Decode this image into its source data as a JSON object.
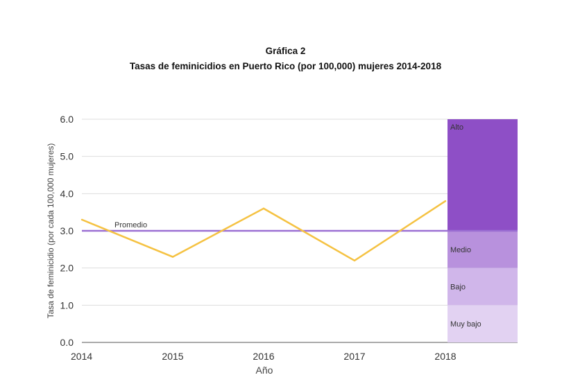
{
  "chart_data": {
    "type": "line",
    "title": "Gráfica 2",
    "subtitle": "Tasas de feminicidios en Puerto Rico (por 100,000) mujeres 2014-2018",
    "xlabel": "Año",
    "ylabel": "Tasa de feminicidio (por cada 100,000 mujeres)",
    "x": [
      2014,
      2015,
      2016,
      2017,
      2018
    ],
    "xticks": [
      "2014",
      "2015",
      "2016",
      "2017",
      "2018"
    ],
    "yticks": [
      "0.0",
      "1.0",
      "2.0",
      "3.0",
      "4.0",
      "5.0",
      "6.0"
    ],
    "ylim": [
      0,
      6
    ],
    "grid": true,
    "series": [
      {
        "values": [
          3.3,
          2.3,
          3.6,
          2.2,
          3.8
        ],
        "color": "#f5c242"
      }
    ],
    "reference_line": {
      "label": "Promedio",
      "value": 3.0,
      "color": "#9b6fd3"
    },
    "bands": [
      {
        "label": "Alto",
        "from": 3.0,
        "to": 6.0,
        "color": "#8e4fc6"
      },
      {
        "label": "Medio",
        "from": 2.0,
        "to": 3.0,
        "color": "#b891dd"
      },
      {
        "label": "Bajo",
        "from": 1.0,
        "to": 2.0,
        "color": "#d0b6ea"
      },
      {
        "label": "Muy bajo",
        "from": 0.0,
        "to": 1.0,
        "color": "#e2d2f2"
      }
    ]
  }
}
